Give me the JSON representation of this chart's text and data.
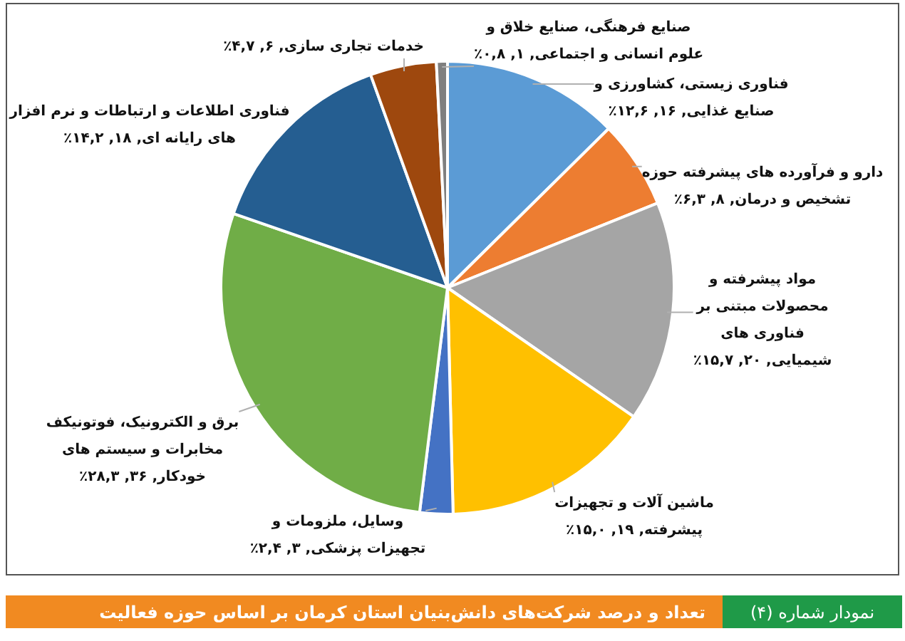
{
  "chart_data": {
    "type": "pie",
    "title": "تعداد و درصد شرکت‌های دانش‌بنیان استان کرمان بر اساس حوزه فعالیت",
    "subtitle": "نمودار شماره (۴)",
    "categories": [
      "فناوری زیستی، کشاورزی و صنایع غذایی",
      "دارو و فرآورده های پیشرفته حوزه تشخیص و درمان",
      "مواد پیشرفته و محصولات مبتنی بر فناوری های شیمیایی",
      "ماشین آلات و تجهیزات پیشرفته",
      "وسایل، ملزومات و تجهیزات پزشکی",
      "برق و الکترونیک، فوتونیکف مخابرات و سیستم های خودکار",
      "فناوری اطلاعات و ارتباطات و نرم افزار های رایانه ای ",
      "خدمات تجاری سازی",
      "صنایع فرهنگی، صنایع خلاق و علوم انسانی و اجتماعی"
    ],
    "values": [
      16,
      8,
      20,
      19,
      3,
      36,
      18,
      6,
      1
    ],
    "value_labels": [
      ", ۱۶, ۱۲,۶٪",
      ", ۸, ۶,۳٪",
      ", ۲۰, ۱۵,۷٪",
      ", ۱۹, ۱۵,۰٪",
      ", ۳, ۲,۴٪",
      ", ۳۶, ۲۸,۳٪",
      ", ۱۸, ۱۴,۲٪",
      ", ۶, ۴,۷٪",
      ", ۱, ۰,۸٪"
    ],
    "colors": [
      "#5b9bd5",
      "#ed7d31",
      "#a5a5a5",
      "#ffc000",
      "#4472c4",
      "#70ad47",
      "#255e91",
      "#9e480e",
      "#7f7f7f"
    ],
    "legend": false
  }
}
